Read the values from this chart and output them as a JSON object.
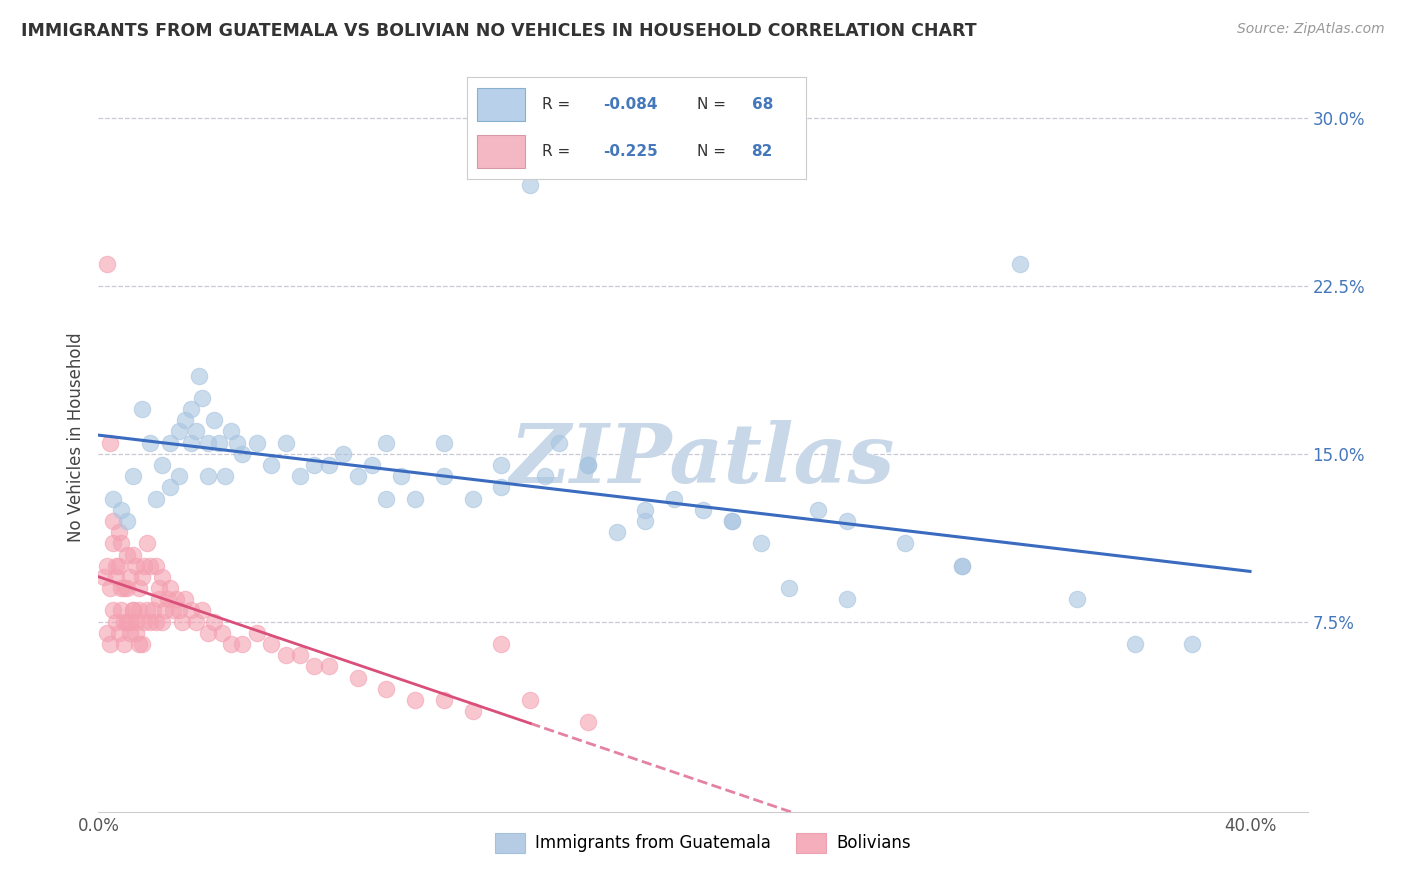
{
  "title": "IMMIGRANTS FROM GUATEMALA VS BOLIVIAN NO VEHICLES IN HOUSEHOLD CORRELATION CHART",
  "source": "Source: ZipAtlas.com",
  "ylabel": "No Vehicles in Household",
  "xlim": [
    0.0,
    0.42
  ],
  "ylim": [
    -0.01,
    0.325
  ],
  "xticks": [
    0.0,
    0.05,
    0.1,
    0.15,
    0.2,
    0.25,
    0.3,
    0.35,
    0.4
  ],
  "yticks": [
    0.075,
    0.15,
    0.225,
    0.3
  ],
  "xticklabels": [
    "0.0%",
    "",
    "",
    "",
    "",
    "",
    "",
    "",
    "40.0%"
  ],
  "yticklabels": [
    "7.5%",
    "15.0%",
    "22.5%",
    "30.0%"
  ],
  "blue_label": "Immigrants from Guatemala",
  "pink_label": "Bolivians",
  "blue_r": -0.084,
  "blue_n": 68,
  "pink_r": -0.225,
  "pink_n": 82,
  "blue_color": "#a8c4e0",
  "pink_color": "#f4a0b0",
  "blue_line_color": "#3a6bbf",
  "pink_line_color": "#d94f7a",
  "legend_text_color": "#4477bb",
  "ytick_color": "#4477bb",
  "watermark": "ZIPatlas",
  "watermark_color": "#c8d8e8",
  "blue_scatter_x": [
    0.005,
    0.008,
    0.01,
    0.012,
    0.015,
    0.018,
    0.02,
    0.022,
    0.025,
    0.025,
    0.028,
    0.028,
    0.03,
    0.032,
    0.032,
    0.034,
    0.035,
    0.036,
    0.038,
    0.038,
    0.04,
    0.042,
    0.044,
    0.046,
    0.048,
    0.05,
    0.055,
    0.06,
    0.065,
    0.07,
    0.075,
    0.08,
    0.085,
    0.09,
    0.095,
    0.1,
    0.105,
    0.11,
    0.12,
    0.13,
    0.14,
    0.15,
    0.16,
    0.17,
    0.18,
    0.19,
    0.2,
    0.21,
    0.22,
    0.23,
    0.24,
    0.25,
    0.26,
    0.28,
    0.3,
    0.32,
    0.34,
    0.36,
    0.38,
    0.1,
    0.12,
    0.14,
    0.155,
    0.17,
    0.19,
    0.22,
    0.26,
    0.3
  ],
  "blue_scatter_y": [
    0.13,
    0.125,
    0.12,
    0.14,
    0.17,
    0.155,
    0.13,
    0.145,
    0.155,
    0.135,
    0.16,
    0.14,
    0.165,
    0.155,
    0.17,
    0.16,
    0.185,
    0.175,
    0.155,
    0.14,
    0.165,
    0.155,
    0.14,
    0.16,
    0.155,
    0.15,
    0.155,
    0.145,
    0.155,
    0.14,
    0.145,
    0.145,
    0.15,
    0.14,
    0.145,
    0.13,
    0.14,
    0.13,
    0.14,
    0.13,
    0.135,
    0.27,
    0.155,
    0.145,
    0.115,
    0.12,
    0.13,
    0.125,
    0.12,
    0.11,
    0.09,
    0.125,
    0.12,
    0.11,
    0.1,
    0.235,
    0.085,
    0.065,
    0.065,
    0.155,
    0.155,
    0.145,
    0.14,
    0.145,
    0.125,
    0.12,
    0.085,
    0.1
  ],
  "pink_scatter_x": [
    0.002,
    0.003,
    0.003,
    0.004,
    0.004,
    0.005,
    0.005,
    0.006,
    0.006,
    0.007,
    0.007,
    0.008,
    0.008,
    0.009,
    0.009,
    0.01,
    0.01,
    0.011,
    0.011,
    0.012,
    0.012,
    0.013,
    0.013,
    0.014,
    0.014,
    0.015,
    0.015,
    0.016,
    0.016,
    0.017,
    0.017,
    0.018,
    0.018,
    0.019,
    0.02,
    0.02,
    0.021,
    0.021,
    0.022,
    0.022,
    0.023,
    0.024,
    0.025,
    0.026,
    0.027,
    0.028,
    0.029,
    0.03,
    0.032,
    0.034,
    0.036,
    0.038,
    0.04,
    0.043,
    0.046,
    0.05,
    0.055,
    0.06,
    0.065,
    0.07,
    0.075,
    0.08,
    0.09,
    0.1,
    0.11,
    0.12,
    0.13,
    0.14,
    0.15,
    0.17,
    0.003,
    0.004,
    0.005,
    0.006,
    0.007,
    0.008,
    0.009,
    0.01,
    0.011,
    0.012,
    0.013,
    0.014
  ],
  "pink_scatter_y": [
    0.095,
    0.07,
    0.1,
    0.065,
    0.09,
    0.08,
    0.11,
    0.075,
    0.095,
    0.07,
    0.1,
    0.08,
    0.11,
    0.065,
    0.09,
    0.075,
    0.105,
    0.07,
    0.095,
    0.08,
    0.105,
    0.075,
    0.1,
    0.08,
    0.09,
    0.065,
    0.095,
    0.075,
    0.1,
    0.08,
    0.11,
    0.075,
    0.1,
    0.08,
    0.075,
    0.1,
    0.085,
    0.09,
    0.075,
    0.095,
    0.08,
    0.085,
    0.09,
    0.08,
    0.085,
    0.08,
    0.075,
    0.085,
    0.08,
    0.075,
    0.08,
    0.07,
    0.075,
    0.07,
    0.065,
    0.065,
    0.07,
    0.065,
    0.06,
    0.06,
    0.055,
    0.055,
    0.05,
    0.045,
    0.04,
    0.04,
    0.035,
    0.065,
    0.04,
    0.03,
    0.235,
    0.155,
    0.12,
    0.1,
    0.115,
    0.09,
    0.075,
    0.09,
    0.075,
    0.08,
    0.07,
    0.065
  ]
}
